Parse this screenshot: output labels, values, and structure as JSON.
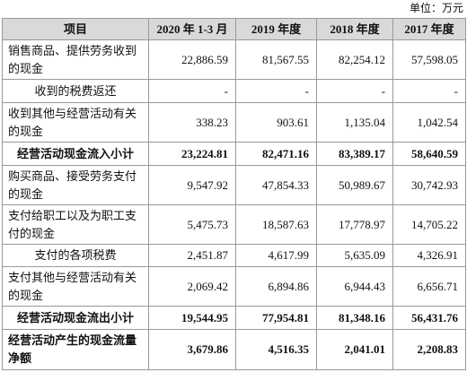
{
  "header": {
    "unit": "单位：万元"
  },
  "table": {
    "columns": [
      "项目",
      "2020 年 1-3 月",
      "2019 年度",
      "2018 年度",
      "2017 年度"
    ],
    "rows": [
      [
        "销售商品、提供劳务收到的现金",
        "22,886.59",
        "81,567.55",
        "82,254.12",
        "57,598.05"
      ],
      [
        "收到的税费返还",
        "-",
        "-",
        "-",
        "-"
      ],
      [
        "收到其他与经营活动有关的现金",
        "338.23",
        "903.61",
        "1,135.04",
        "1,042.54"
      ],
      [
        "经营活动现金流入小计",
        "23,224.81",
        "82,471.16",
        "83,389.17",
        "58,640.59"
      ],
      [
        "购买商品、接受劳务支付的现金",
        "9,547.92",
        "47,854.33",
        "50,989.67",
        "30,742.93"
      ],
      [
        "支付给职工以及为职工支付的现金",
        "5,475.73",
        "18,587.63",
        "17,778.97",
        "14,705.22"
      ],
      [
        "支付的各项税费",
        "2,451.87",
        "4,617.99",
        "5,635.09",
        "4,326.91"
      ],
      [
        "支付其他与经营活动有关的现金",
        "2,069.42",
        "6,894.86",
        "6,944.43",
        "6,656.71"
      ],
      [
        "经营活动现金流出小计",
        "19,544.95",
        "77,954.81",
        "81,348.16",
        "56,431.76"
      ],
      [
        "经营活动产生的现金流量净额",
        "3,679.86",
        "4,516.35",
        "2,041.01",
        "2,208.83"
      ]
    ]
  }
}
